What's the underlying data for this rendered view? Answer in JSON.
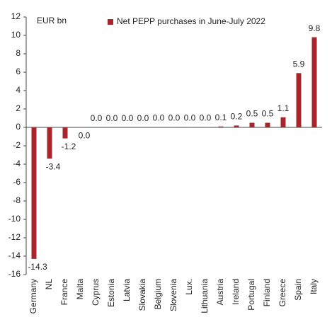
{
  "chart_data": {
    "type": "bar",
    "y_label": "EUR bn",
    "categories": [
      "Germany",
      "NL",
      "France",
      "Malta",
      "Cyprus",
      "Estonia",
      "Latvia",
      "Slovakia",
      "Belgium",
      "Slovenia",
      "Lux.",
      "Lithuania",
      "Austria",
      "Ireland",
      "Portugal",
      "Finland",
      "Greece",
      "Spain",
      "Italy"
    ],
    "series": [
      {
        "name": "Net PEPP purchases in June-July 2022",
        "color": "#a8262b",
        "values": [
          -14.3,
          -3.4,
          -1.2,
          -0.02,
          0.0,
          0.0,
          0.0,
          0.0,
          0.04,
          0.04,
          0.04,
          0.04,
          0.1,
          0.2,
          0.5,
          0.5,
          1.1,
          5.9,
          9.8
        ],
        "value_labels": [
          "-14.3",
          "-3.4",
          "-1.2",
          "0.0",
          "0.0",
          "0.0",
          "0.0",
          "0.0",
          "0.0",
          "0.0",
          "0.0",
          "0.0",
          "0.1",
          "0.2",
          "0.5",
          "0.5",
          "1.1",
          "5.9",
          "9.8"
        ]
      }
    ],
    "ylim": [
      -16,
      12
    ],
    "yticks": [
      -16,
      -14,
      -12,
      -10,
      -8,
      -6,
      -4,
      -2,
      0,
      2,
      4,
      6,
      8,
      10,
      12
    ],
    "legend": "top"
  }
}
